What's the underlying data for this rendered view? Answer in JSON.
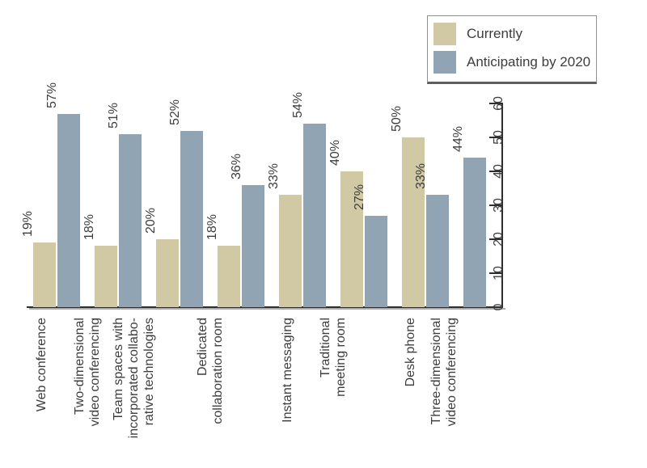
{
  "chart_data": {
    "type": "bar",
    "title": "",
    "categories": [
      "Web conference",
      "Two-dimensional\nvideo conferencing",
      "Team spaces with\nincorporated collabo-\nrative technologies",
      "Dedicated\ncollaboration room",
      "Instant messaging",
      "Traditional\nmeeting room",
      "Desk phone",
      "Three-dimensional\nvideo conferencing"
    ],
    "series": [
      {
        "name": "Currently",
        "color": "#d1c8a4",
        "values": [
          19,
          18,
          20,
          18,
          33,
          40,
          50,
          null
        ]
      },
      {
        "name": "Anticipating by 2020",
        "color": "#90a4b4",
        "values": [
          57,
          51,
          52,
          36,
          54,
          27,
          33,
          44
        ]
      }
    ],
    "value_labels": {
      "currently": [
        "19%",
        "18%",
        "20%",
        "18%",
        "33%",
        "40%",
        "50%",
        null
      ],
      "anticipating_by_2020": [
        "57%",
        "51%",
        "52%",
        "36%",
        "54%",
        "27%",
        "33%",
        "44%"
      ]
    },
    "value_suffix": "%",
    "ylim": [
      0,
      60
    ],
    "yticks": [
      0,
      10,
      20,
      30,
      40,
      50,
      60
    ],
    "y_axis_side": "right",
    "label_rotation_deg": -90,
    "grid": false,
    "legend": {
      "position": "top-right"
    }
  },
  "colors": {
    "background": "#ffffff",
    "text": "#3d3d3d",
    "axis": "#2e2e2e",
    "axis_shadow": "#aaaaaa",
    "legend_border": "#8f8f8f",
    "legend_border_bottom": "#5f5f5f"
  }
}
